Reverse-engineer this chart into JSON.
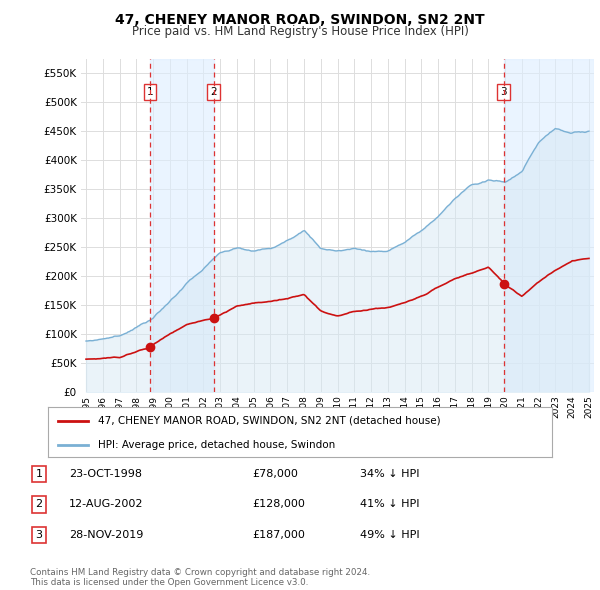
{
  "title": "47, CHENEY MANOR ROAD, SWINDON, SN2 2NT",
  "subtitle": "Price paid vs. HM Land Registry's House Price Index (HPI)",
  "ytick_values": [
    0,
    50000,
    100000,
    150000,
    200000,
    250000,
    300000,
    350000,
    400000,
    450000,
    500000,
    550000
  ],
  "ylim": [
    0,
    575000
  ],
  "xlim": [
    1994.7,
    2025.3
  ],
  "background_color": "#ffffff",
  "plot_bg_color": "#ffffff",
  "hpi_color": "#7ab0d4",
  "hpi_fill_color": "#d6e8f5",
  "price_color": "#cc1111",
  "vline_color": "#dd3333",
  "shade_color": "#ddeeff",
  "sale_points": [
    {
      "date": 1998.81,
      "price": 78000,
      "label": "1"
    },
    {
      "date": 2002.61,
      "price": 128000,
      "label": "2"
    },
    {
      "date": 2019.91,
      "price": 187000,
      "label": "3"
    }
  ],
  "legend_price_label": "47, CHENEY MANOR ROAD, SWINDON, SN2 2NT (detached house)",
  "legend_hpi_label": "HPI: Average price, detached house, Swindon",
  "table_rows": [
    {
      "num": "1",
      "date": "23-OCT-1998",
      "price": "£78,000",
      "hpi": "34% ↓ HPI"
    },
    {
      "num": "2",
      "date": "12-AUG-2002",
      "price": "£128,000",
      "hpi": "41% ↓ HPI"
    },
    {
      "num": "3",
      "date": "28-NOV-2019",
      "price": "£187,000",
      "hpi": "49% ↓ HPI"
    }
  ],
  "footer": "Contains HM Land Registry data © Crown copyright and database right 2024.\nThis data is licensed under the Open Government Licence v3.0."
}
